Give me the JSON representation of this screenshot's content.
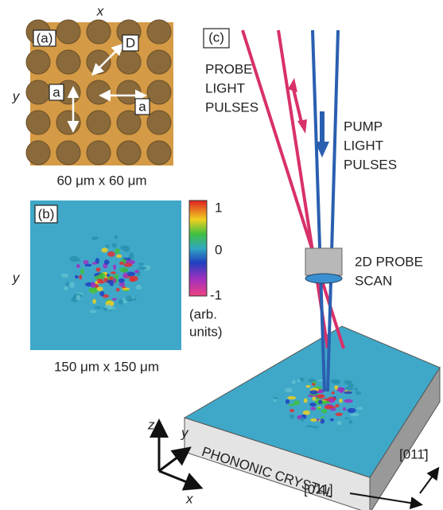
{
  "panels": [
    {
      "label": "(a)",
      "x_axis": "x",
      "y_axis": "y",
      "markers": [
        "D",
        "a",
        "a"
      ],
      "caption": "60 μm x 60 μm"
    },
    {
      "label": "(b)",
      "y_axis": "y",
      "caption": "150 μm x 150 μm",
      "colorbar_ticks": [
        "1",
        "0",
        "-1"
      ],
      "colorbar_unit": [
        "(arb.",
        "units)"
      ]
    },
    {
      "label": "(c)",
      "probe": [
        "PROBE",
        "LIGHT",
        "PULSES"
      ],
      "pump": [
        "PUMP",
        "LIGHT",
        "PULSES"
      ],
      "scan": [
        "2D PROBE",
        "SCAN"
      ],
      "crystal": "PHONONIC CRYSTAL",
      "axes": [
        "z",
        "y",
        "x"
      ],
      "directions": [
        "[011]",
        "[011̄]"
      ]
    }
  ]
}
